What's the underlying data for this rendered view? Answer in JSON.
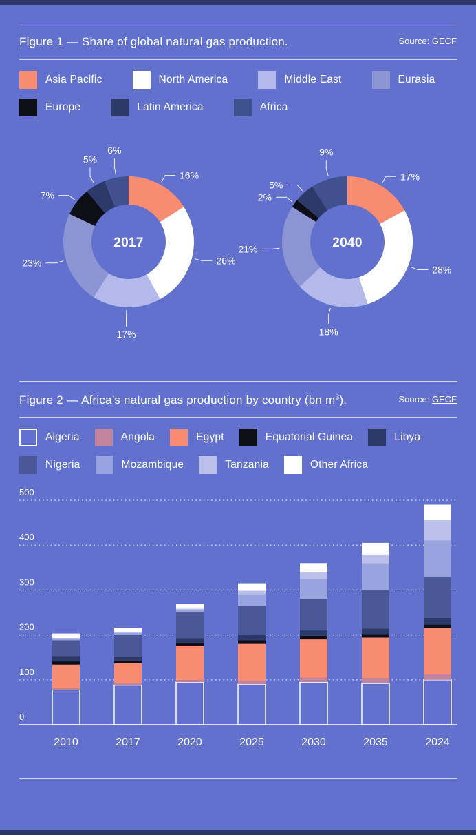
{
  "page": {
    "background": "#6271ce",
    "edge_strip_color": "#2b3566",
    "text_color": "#ffffff"
  },
  "figure1": {
    "title": "Figure 1 — Share of global natural gas production.",
    "source_label": "Source:",
    "source_link": "GECF"
  },
  "figure2": {
    "title_main": "Figure 2 — Africa’s natural gas production by country (bn m",
    "title_sup": "3",
    "title_end": ").",
    "source_label": "Source:",
    "source_link": "GECF"
  },
  "chart_data": [
    {
      "id": "figure1",
      "type": "pie",
      "subtype": "donut",
      "unit": "%",
      "legend_position": "top",
      "categories": [
        "Asia Pacific",
        "North America",
        "Middle East",
        "Eurasia",
        "Europe",
        "Latin America",
        "Africa"
      ],
      "colors": [
        "#f98b71",
        "#ffffff",
        "#b3b9ea",
        "#8d94d4",
        "#0e0e16",
        "#2d3968",
        "#41508e"
      ],
      "donuts": [
        {
          "center_label": "2017",
          "values": [
            16,
            26,
            17,
            23,
            7,
            5,
            6
          ]
        },
        {
          "center_label": "2040",
          "values": [
            17,
            28,
            18,
            21,
            2,
            5,
            9
          ]
        }
      ]
    },
    {
      "id": "figure2",
      "type": "bar",
      "stacked": true,
      "unit": "bn m³",
      "grid": "dotted horizontal",
      "ylim": [
        0,
        500
      ],
      "yticks": [
        0,
        100,
        200,
        300,
        400,
        500
      ],
      "categories": [
        "2010",
        "2017",
        "2020",
        "2025",
        "2030",
        "2035",
        "2024"
      ],
      "series": [
        {
          "name": "Algeria",
          "color": "none",
          "outlined": true,
          "values": [
            78,
            88,
            95,
            90,
            95,
            92,
            100
          ]
        },
        {
          "name": "Angola",
          "color": "#c2849b",
          "values": [
            4,
            4,
            5,
            8,
            10,
            12,
            12
          ]
        },
        {
          "name": "Egypt",
          "color": "#f98b71",
          "values": [
            52,
            45,
            75,
            82,
            85,
            90,
            103
          ]
        },
        {
          "name": "Equatorial Guinea",
          "color": "#0e0e16",
          "values": [
            7,
            6,
            8,
            8,
            8,
            8,
            8
          ]
        },
        {
          "name": "Libya",
          "color": "#2d3968",
          "values": [
            12,
            8,
            10,
            12,
            12,
            12,
            15
          ]
        },
        {
          "name": "Nigeria",
          "color": "#4b5898",
          "values": [
            35,
            50,
            57,
            65,
            70,
            85,
            92
          ]
        },
        {
          "name": "Mozambique",
          "color": "#99a3de",
          "values": [
            3,
            3,
            5,
            25,
            45,
            60,
            80
          ]
        },
        {
          "name": "Tanzania",
          "color": "#bac0ea",
          "values": [
            2,
            2,
            3,
            8,
            15,
            20,
            45
          ]
        },
        {
          "name": "Other Africa",
          "color": "#ffffff",
          "values": [
            10,
            10,
            12,
            17,
            20,
            26,
            35
          ]
        }
      ]
    }
  ]
}
